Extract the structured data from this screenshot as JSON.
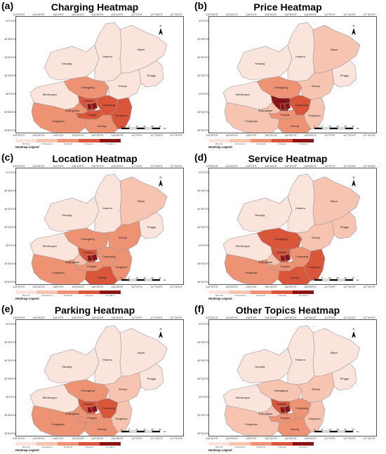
{
  "panels": [
    {
      "letter": "(a)",
      "title": "Charging Heatmap"
    },
    {
      "letter": "(b)",
      "title": "Price Heatmap"
    },
    {
      "letter": "(c)",
      "title": "Location Heatmap"
    },
    {
      "letter": "(d)",
      "title": "Service Heatmap"
    },
    {
      "letter": "(e)",
      "title": "Parking Heatmap"
    },
    {
      "letter": "(f)",
      "title": "Other Topics Heatmap"
    }
  ],
  "districts": [
    "Yanqing",
    "Huairou",
    "Miyun",
    "Pinggu",
    "Changping",
    "Shunyi",
    "Mentougou",
    "Haidian",
    "Chaoyang",
    "Shijingshan",
    "Fengtai",
    "Tongzhou",
    "Fangshan",
    "Daxing",
    "Dongcheng",
    "Xicheng"
  ],
  "lat_labels": [
    "41°0'0\"N",
    "40°45'0\"N",
    "40°30'0\"N",
    "40°15'0\"N",
    "40°0'0\"N",
    "39°45'0\"N",
    "39°30'0\"N"
  ],
  "lon_labels": [
    "115°30'0\"E",
    "115°45'0\"E",
    "116°0'0\"E",
    "116°15'0\"E",
    "116°30'0\"E",
    "116°45'0\"E",
    "117°0'0\"E",
    "117°15'0\"E",
    "117°30'0\"E"
  ],
  "legend": {
    "title": "Heatmap Legend",
    "levels": [
      "Minimal",
      "Occasional",
      "Moderate",
      "Frequent",
      "Prevalent"
    ],
    "colors": [
      "#fbe4dc",
      "#f7c4b1",
      "#ee9274",
      "#d9563a",
      "#8c1414"
    ]
  },
  "north_label": "N",
  "scale_labels": [
    "0",
    "5",
    "10",
    "20",
    "30",
    "40"
  ],
  "scale_unit": "km",
  "levels_by_panel": [
    {
      "Yanqing": 0,
      "Huairou": 0,
      "Miyun": 0,
      "Pinggu": 0,
      "Changping": 2,
      "Shunyi": 0,
      "Mentougou": 0,
      "Haidian": 3,
      "Chaoyang": 3,
      "Shijingshan": 2,
      "Fengtai": 3,
      "Tongzhou": 3,
      "Fangshan": 2,
      "Daxing": 2,
      "Dongcheng": 4,
      "Xicheng": 4
    },
    {
      "Yanqing": 0,
      "Huairou": 0,
      "Miyun": 1,
      "Pinggu": 0,
      "Changping": 2,
      "Shunyi": 1,
      "Mentougou": 0,
      "Haidian": 4,
      "Chaoyang": 3,
      "Shijingshan": 1,
      "Fengtai": 2,
      "Tongzhou": 1,
      "Fangshan": 1,
      "Daxing": 2,
      "Dongcheng": 4,
      "Xicheng": 4
    },
    {
      "Yanqing": 0,
      "Huairou": 0,
      "Miyun": 1,
      "Pinggu": 0,
      "Changping": 2,
      "Shunyi": 2,
      "Mentougou": 0,
      "Haidian": 3,
      "Chaoyang": 2,
      "Shijingshan": 1,
      "Fengtai": 2,
      "Tongzhou": 2,
      "Fangshan": 2,
      "Daxing": 3,
      "Dongcheng": 4,
      "Xicheng": 4
    },
    {
      "Yanqing": 0,
      "Huairou": 0,
      "Miyun": 1,
      "Pinggu": 1,
      "Changping": 3,
      "Shunyi": 1,
      "Mentougou": 0,
      "Haidian": 3,
      "Chaoyang": 2,
      "Shijingshan": 1,
      "Fengtai": 2,
      "Tongzhou": 3,
      "Fangshan": 2,
      "Daxing": 3,
      "Dongcheng": 4,
      "Xicheng": 4
    },
    {
      "Yanqing": 0,
      "Huairou": 0,
      "Miyun": 0,
      "Pinggu": 0,
      "Changping": 2,
      "Shunyi": 1,
      "Mentougou": 0,
      "Haidian": 3,
      "Chaoyang": 3,
      "Shijingshan": 2,
      "Fengtai": 2,
      "Tongzhou": 1,
      "Fangshan": 2,
      "Daxing": 2,
      "Dongcheng": 4,
      "Xicheng": 4
    },
    {
      "Yanqing": 0,
      "Huairou": 0,
      "Miyun": 0,
      "Pinggu": 0,
      "Changping": 1,
      "Shunyi": 1,
      "Mentougou": 0,
      "Haidian": 3,
      "Chaoyang": 2,
      "Shijingshan": 1,
      "Fengtai": 2,
      "Tongzhou": 1,
      "Fangshan": 1,
      "Daxing": 2,
      "Dongcheng": 4,
      "Xicheng": 4
    }
  ]
}
